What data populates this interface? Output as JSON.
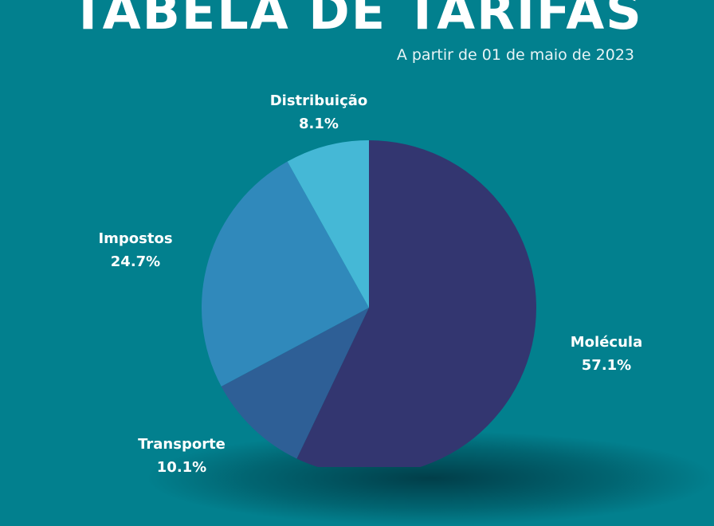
{
  "header": {
    "title": "TABELA DE TARIFAS",
    "subtitle": "A partir de 01 de maio de 2023"
  },
  "chart_data": {
    "type": "pie",
    "title": "TABELA DE TARIFAS",
    "subtitle": "A partir de 01 de maio de 2023",
    "slices": [
      {
        "label": "Molécula",
        "value": 57.1,
        "display": "57.1%",
        "color": "#333670"
      },
      {
        "label": "Transporte",
        "value": 10.1,
        "display": "10.1%",
        "color": "#2e5f96"
      },
      {
        "label": "Impostos",
        "value": 24.7,
        "display": "24.7%",
        "color": "#3089bb"
      },
      {
        "label": "Distribuição",
        "value": 8.1,
        "display": "8.1%",
        "color": "#45b8d6"
      }
    ],
    "start": "top",
    "direction": "clockwise",
    "background": "#02808e"
  }
}
